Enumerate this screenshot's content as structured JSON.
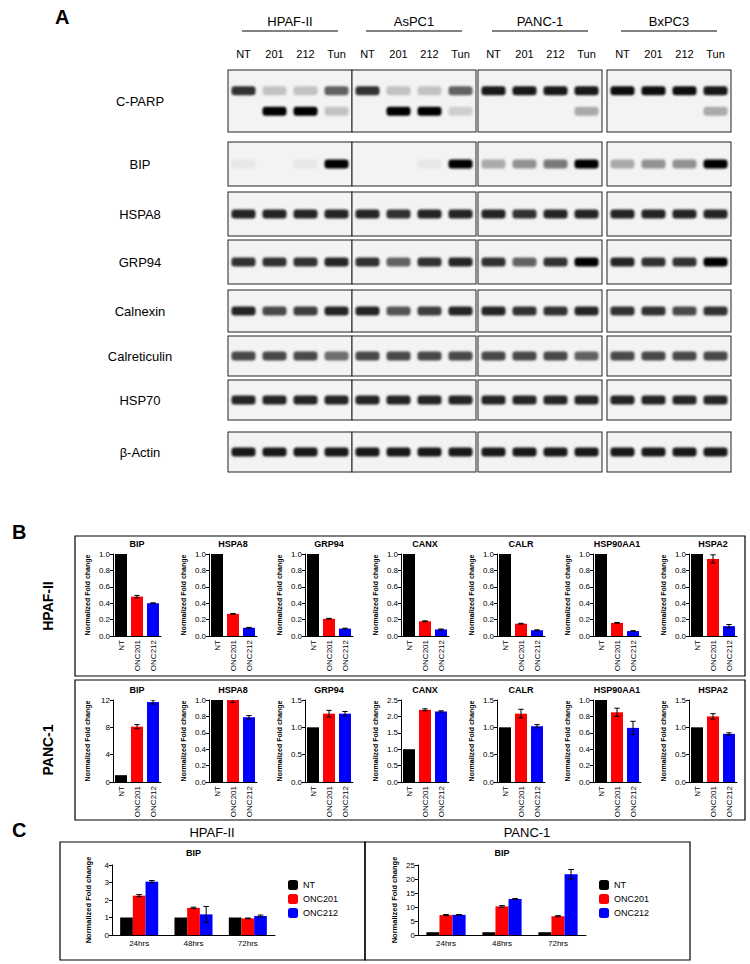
{
  "panel_a": {
    "label": "A",
    "cell_lines": [
      "HPAF-II",
      "AsPC1",
      "PANC-1",
      "BxPC3"
    ],
    "lanes": [
      "NT",
      "201",
      "212",
      "Tun"
    ],
    "rows": [
      {
        "label": "C-PARP",
        "bands": [
          [
            0.8,
            0.2,
            0.2,
            0.6,
            0.8,
            0.2,
            0.2,
            0.6,
            0.9,
            0.9,
            0.9,
            0.9,
            0.95,
            0.95,
            0.95,
            0.9
          ],
          [
            0,
            1,
            1,
            0.2,
            0,
            1,
            1,
            0.15,
            0,
            0,
            0,
            0.3,
            0,
            0,
            0,
            0.3
          ]
        ]
      },
      {
        "label": "BIP",
        "bands": [
          [
            0.05,
            0,
            0.05,
            1,
            0,
            0,
            0.05,
            1,
            0.3,
            0.4,
            0.5,
            1,
            0.3,
            0.4,
            0.4,
            1
          ]
        ]
      },
      {
        "label": "HSPA8",
        "bands": [
          [
            0.85,
            0.85,
            0.85,
            0.85,
            0.85,
            0.8,
            0.85,
            0.85,
            0.85,
            0.8,
            0.85,
            0.85,
            0.85,
            0.85,
            0.85,
            0.85
          ]
        ]
      },
      {
        "label": "GRP94",
        "bands": [
          [
            0.8,
            0.8,
            0.8,
            0.85,
            0.8,
            0.6,
            0.8,
            0.85,
            0.8,
            0.6,
            0.8,
            1,
            0.85,
            0.8,
            0.8,
            1
          ]
        ]
      },
      {
        "label": "Calnexin",
        "bands": [
          [
            0.85,
            0.7,
            0.75,
            0.85,
            0.85,
            0.65,
            0.75,
            0.85,
            0.85,
            0.8,
            0.8,
            0.85,
            0.8,
            0.8,
            0.7,
            0.8
          ]
        ]
      },
      {
        "label": "Calreticulin",
        "bands": [
          [
            0.7,
            0.7,
            0.7,
            0.55,
            0.7,
            0.7,
            0.7,
            0.7,
            0.7,
            0.7,
            0.7,
            0.6,
            0.7,
            0.7,
            0.7,
            0.7
          ]
        ]
      },
      {
        "label": "HSP70",
        "bands": [
          [
            0.85,
            0.85,
            0.85,
            0.85,
            0.85,
            0.85,
            0.85,
            0.85,
            0.85,
            0.85,
            0.85,
            0.85,
            0.85,
            0.85,
            0.85,
            0.85
          ]
        ]
      },
      {
        "label": "β-Actin",
        "bands": [
          [
            0.9,
            0.9,
            0.9,
            0.9,
            0.9,
            0.9,
            0.9,
            0.9,
            0.9,
            0.9,
            0.9,
            0.9,
            0.9,
            0.9,
            0.9,
            0.9
          ]
        ]
      }
    ]
  },
  "panel_b": {
    "label": "B",
    "rows": [
      "HPAF-II",
      "PANC-1"
    ]
  },
  "panel_c": {
    "label": "C",
    "headers": [
      "HPAF-II",
      "PANC-1"
    ]
  },
  "chart_data": [
    {
      "type": "bar",
      "title": "BIP",
      "ylabel": "Normalized Fold change",
      "categories": [
        "NT",
        "ONC201",
        "ONC212"
      ],
      "values": [
        1,
        0.48,
        0.4
      ],
      "errors": [
        null,
        0.015,
        0.005
      ],
      "colors": [
        "#000000",
        "#ff0000",
        "#0000ff"
      ],
      "ylim": [
        0,
        1
      ],
      "yticks": [
        {
          "value": 0,
          "label": "0.0"
        },
        0.2,
        0.4,
        0.6,
        0.8,
        {
          "value": 1,
          "label": "1.0"
        }
      ],
      "grid": false
    },
    {
      "type": "bar",
      "title": "HSPA8",
      "ylabel": "Normalized Fold change",
      "categories": [
        "NT",
        "ONC201",
        "ONC212"
      ],
      "values": [
        1,
        0.27,
        0.1
      ],
      "errors": [
        null,
        0.005,
        0.005
      ],
      "colors": [
        "#000000",
        "#ff0000",
        "#0000ff"
      ],
      "ylim": [
        0,
        1
      ],
      "yticks": [
        {
          "value": 0,
          "label": "0.0"
        },
        0.2,
        0.4,
        0.6,
        0.8,
        {
          "value": 1,
          "label": "1.0"
        }
      ],
      "grid": false
    },
    {
      "type": "bar",
      "title": "GRP94",
      "ylabel": "Normalized Fold change",
      "categories": [
        "NT",
        "ONC201",
        "ONC212"
      ],
      "values": [
        1,
        0.21,
        0.09
      ],
      "errors": [
        null,
        0.005,
        0.005
      ],
      "colors": [
        "#000000",
        "#ff0000",
        "#0000ff"
      ],
      "ylim": [
        0,
        1
      ],
      "yticks": [
        {
          "value": 0,
          "label": "0.0"
        },
        0.2,
        0.4,
        0.6,
        0.8,
        {
          "value": 1,
          "label": "1.0"
        }
      ],
      "grid": false
    },
    {
      "type": "bar",
      "title": "CANX",
      "ylabel": "Normalized Fold change",
      "categories": [
        "NT",
        "ONC201",
        "ONC212"
      ],
      "values": [
        1,
        0.18,
        0.08
      ],
      "errors": [
        null,
        0.005,
        0.005
      ],
      "colors": [
        "#000000",
        "#ff0000",
        "#0000ff"
      ],
      "ylim": [
        0,
        1
      ],
      "yticks": [
        {
          "value": 0,
          "label": "0.0"
        },
        0.2,
        0.4,
        0.6,
        0.8,
        {
          "value": 1,
          "label": "1.0"
        }
      ],
      "grid": false
    },
    {
      "type": "bar",
      "title": "CALR",
      "ylabel": "Normalized Fold change",
      "categories": [
        "NT",
        "ONC201",
        "ONC212"
      ],
      "values": [
        1,
        0.15,
        0.07
      ],
      "errors": [
        null,
        0.005,
        0.005
      ],
      "colors": [
        "#000000",
        "#ff0000",
        "#0000ff"
      ],
      "ylim": [
        0,
        1
      ],
      "yticks": [
        {
          "value": 0,
          "label": "0.0"
        },
        0.2,
        0.4,
        0.6,
        0.8,
        {
          "value": 1,
          "label": "1.0"
        }
      ],
      "grid": false
    },
    {
      "type": "bar",
      "title": "HSP90AA1",
      "ylabel": "Normalized Fold change",
      "categories": [
        "NT",
        "ONC201",
        "ONC212"
      ],
      "values": [
        1,
        0.16,
        0.06
      ],
      "errors": [
        null,
        0.005,
        0.005
      ],
      "colors": [
        "#000000",
        "#ff0000",
        "#0000ff"
      ],
      "ylim": [
        0,
        1
      ],
      "yticks": [
        {
          "value": 0,
          "label": "0.0"
        },
        0.2,
        0.4,
        0.6,
        0.8,
        {
          "value": 1,
          "label": "1.0"
        }
      ],
      "grid": false
    },
    {
      "type": "bar",
      "title": "HSPA2",
      "ylabel": "Normalized Fold change",
      "categories": [
        "NT",
        "ONC201",
        "ONC212"
      ],
      "values": [
        1,
        0.94,
        0.12
      ],
      "errors": [
        null,
        0.05,
        0.02
      ],
      "colors": [
        "#000000",
        "#ff0000",
        "#0000ff"
      ],
      "ylim": [
        0,
        1
      ],
      "yticks": [
        {
          "value": 0,
          "label": "0.0"
        },
        0.2,
        0.4,
        0.6,
        0.8,
        {
          "value": 1,
          "label": "1.0"
        }
      ],
      "grid": false
    },
    {
      "type": "bar",
      "title": "BIP",
      "ylabel": "Normalized Fold change",
      "categories": [
        "NT",
        "ONC201",
        "ONC212"
      ],
      "values": [
        1,
        8.1,
        11.7
      ],
      "errors": [
        null,
        0.3,
        0.3
      ],
      "colors": [
        "#000000",
        "#ff0000",
        "#0000ff"
      ],
      "ylim": [
        0,
        12
      ],
      "yticks": [
        0,
        4,
        8,
        12
      ],
      "grid": false
    },
    {
      "type": "bar",
      "title": "HSPA8",
      "ylabel": "Normalized Fold change",
      "categories": [
        "NT",
        "ONC201",
        "ONC212"
      ],
      "values": [
        1,
        1.0,
        0.79
      ],
      "errors": [
        null,
        0.03,
        0.02
      ],
      "colors": [
        "#000000",
        "#ff0000",
        "#0000ff"
      ],
      "ylim": [
        0,
        1
      ],
      "yticks": [
        {
          "value": 0,
          "label": "0.0"
        },
        0.2,
        0.4,
        0.6,
        0.8,
        {
          "value": 1,
          "label": "1.0"
        }
      ],
      "grid": false
    },
    {
      "type": "bar",
      "title": "GRP94",
      "ylabel": "Normalized Fold change",
      "categories": [
        "NT",
        "ONC201",
        "ONC212"
      ],
      "values": [
        1,
        1.25,
        1.25
      ],
      "errors": [
        null,
        0.06,
        0.04
      ],
      "colors": [
        "#000000",
        "#ff0000",
        "#0000ff"
      ],
      "ylim": [
        0,
        1.5
      ],
      "yticks": [
        {
          "value": 0,
          "label": "0.0"
        },
        0.5,
        {
          "value": 1,
          "label": "1.0"
        },
        1.5
      ],
      "grid": false
    },
    {
      "type": "bar",
      "title": "CANX",
      "ylabel": "Normalized Fold change",
      "categories": [
        "NT",
        "ONC201",
        "ONC212"
      ],
      "values": [
        1,
        2.2,
        2.15
      ],
      "errors": [
        null,
        0.03,
        0.02
      ],
      "colors": [
        "#000000",
        "#ff0000",
        "#0000ff"
      ],
      "ylim": [
        0,
        2.5
      ],
      "yticks": [
        {
          "value": 0,
          "label": "0.0"
        },
        0.5,
        {
          "value": 1,
          "label": "1.0"
        },
        1.5,
        {
          "value": 2,
          "label": "2.0"
        },
        2.5
      ],
      "grid": false
    },
    {
      "type": "bar",
      "title": "CALR",
      "ylabel": "Normalized Fold change",
      "categories": [
        "NT",
        "ONC201",
        "ONC212"
      ],
      "values": [
        1,
        1.25,
        1.02
      ],
      "errors": [
        null,
        0.08,
        0.03
      ],
      "colors": [
        "#000000",
        "#ff0000",
        "#0000ff"
      ],
      "ylim": [
        0,
        1.5
      ],
      "yticks": [
        {
          "value": 0,
          "label": "0.0"
        },
        0.5,
        {
          "value": 1,
          "label": "1.0"
        },
        1.5
      ],
      "grid": false
    },
    {
      "type": "bar",
      "title": "HSP90AA1",
      "ylabel": "Normalized Fold change",
      "categories": [
        "NT",
        "ONC201",
        "ONC212"
      ],
      "values": [
        1,
        0.85,
        0.66
      ],
      "errors": [
        null,
        0.05,
        0.08
      ],
      "colors": [
        "#000000",
        "#ff0000",
        "#0000ff"
      ],
      "ylim": [
        0,
        1
      ],
      "yticks": [
        {
          "value": 0,
          "label": "0.0"
        },
        0.2,
        0.4,
        0.6,
        0.8,
        {
          "value": 1,
          "label": "1.0"
        }
      ],
      "grid": false
    },
    {
      "type": "bar",
      "title": "HSPA2",
      "ylabel": "Normalized Fold change",
      "categories": [
        "NT",
        "ONC201",
        "ONC212"
      ],
      "values": [
        1,
        1.2,
        0.88
      ],
      "errors": [
        null,
        0.05,
        0.02
      ],
      "colors": [
        "#000000",
        "#ff0000",
        "#0000ff"
      ],
      "ylim": [
        0,
        1.5
      ],
      "yticks": [
        {
          "value": 0,
          "label": "0.0"
        },
        0.5,
        {
          "value": 1,
          "label": "1.0"
        },
        1.5
      ],
      "grid": false
    },
    {
      "type": "bar",
      "title": "BIP",
      "ylabel": "Normalized Fold change",
      "categories": [
        "24hrs",
        "48hrs",
        "72hrs"
      ],
      "series": [
        {
          "name": "NT",
          "color": "#000000",
          "values": [
            1,
            1,
            1
          ],
          "errors": [
            null,
            null,
            null
          ]
        },
        {
          "name": "ONC201",
          "color": "#ff0000",
          "values": [
            2.25,
            1.55,
            0.95
          ],
          "errors": [
            0.06,
            0.04,
            0.02
          ]
        },
        {
          "name": "ONC212",
          "color": "#0000ff",
          "values": [
            3.05,
            1.18,
            1.08
          ],
          "errors": [
            0.06,
            0.45,
            0.06
          ]
        }
      ],
      "ylim": [
        0,
        4
      ],
      "yticks": [
        0,
        1,
        2,
        3,
        4
      ],
      "grid": false,
      "legend": "right"
    },
    {
      "type": "bar",
      "title": "BIP",
      "ylabel": "Normalized Fold change",
      "categories": [
        "24hrs",
        "48hrs",
        "72hrs"
      ],
      "series": [
        {
          "name": "NT",
          "color": "#000000",
          "values": [
            1,
            1,
            1
          ],
          "errors": [
            null,
            null,
            null
          ]
        },
        {
          "name": "ONC201",
          "color": "#ff0000",
          "values": [
            7.1,
            10.2,
            6.7
          ],
          "errors": [
            0.2,
            0.3,
            0.2
          ]
        },
        {
          "name": "ONC212",
          "color": "#0000ff",
          "values": [
            7.2,
            12.9,
            21.7
          ],
          "errors": [
            0.1,
            0.1,
            1.7
          ]
        }
      ],
      "ylim": [
        0,
        25
      ],
      "yticks": [
        0,
        5,
        10,
        15,
        20,
        25
      ],
      "grid": false,
      "legend": "right"
    }
  ]
}
